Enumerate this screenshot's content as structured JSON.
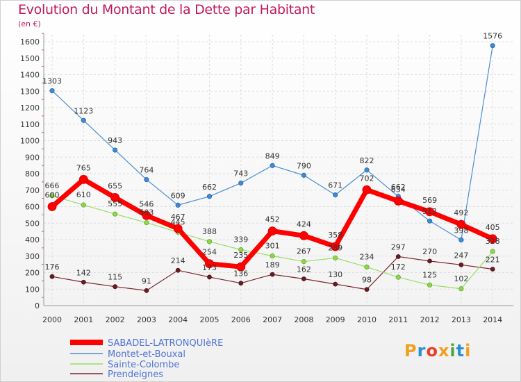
{
  "chart_data": {
    "type": "line",
    "title": "Evolution du Montant de la Dette par Habitant",
    "unit": "(en €)",
    "x": [
      "2000",
      "2001",
      "2002",
      "2003",
      "2004",
      "2005",
      "2006",
      "2007",
      "2008",
      "2009",
      "2010",
      "2011",
      "2012",
      "2013",
      "2014"
    ],
    "yticks": [
      "0",
      "100",
      "200",
      "300",
      "400",
      "500",
      "600",
      "700",
      "800",
      "900",
      "1000",
      "1100",
      "1200",
      "1300",
      "1400",
      "1500",
      "1600"
    ],
    "ylim": [
      0,
      1600
    ],
    "grid": true,
    "legend_position": "bottom-left",
    "series": [
      {
        "name": "SABADEL-LATRONQUIèRE",
        "color": "#ff0000",
        "values": [
          600,
          765,
          655,
          546,
          467,
          254,
          235,
          452,
          424,
          358,
          702,
          634,
          569,
          492,
          405
        ]
      },
      {
        "name": "Montet-et-Bouxal",
        "color": "#4a8ed0",
        "values": [
          1303,
          1123,
          943,
          764,
          609,
          662,
          743,
          849,
          790,
          671,
          822,
          662,
          513,
          398,
          1576
        ]
      },
      {
        "name": "Sainte-Colombe",
        "color": "#99dd66",
        "values": [
          666,
          610,
          555,
          503,
          445,
          388,
          339,
          301,
          267,
          289,
          234,
          172,
          125,
          102,
          328
        ]
      },
      {
        "name": "Prendeignes",
        "color": "#7a2430",
        "values": [
          176,
          142,
          115,
          91,
          214,
          173,
          136,
          189,
          162,
          130,
          98,
          297,
          270,
          247,
          221
        ]
      }
    ]
  },
  "brand": {
    "text": "Proxiti",
    "colors": [
      "#f0a020",
      "#2c8fd6",
      "#e8402a",
      "#f0a020",
      "#4aa83c",
      "#2c8fd6",
      "#f0a020"
    ]
  }
}
